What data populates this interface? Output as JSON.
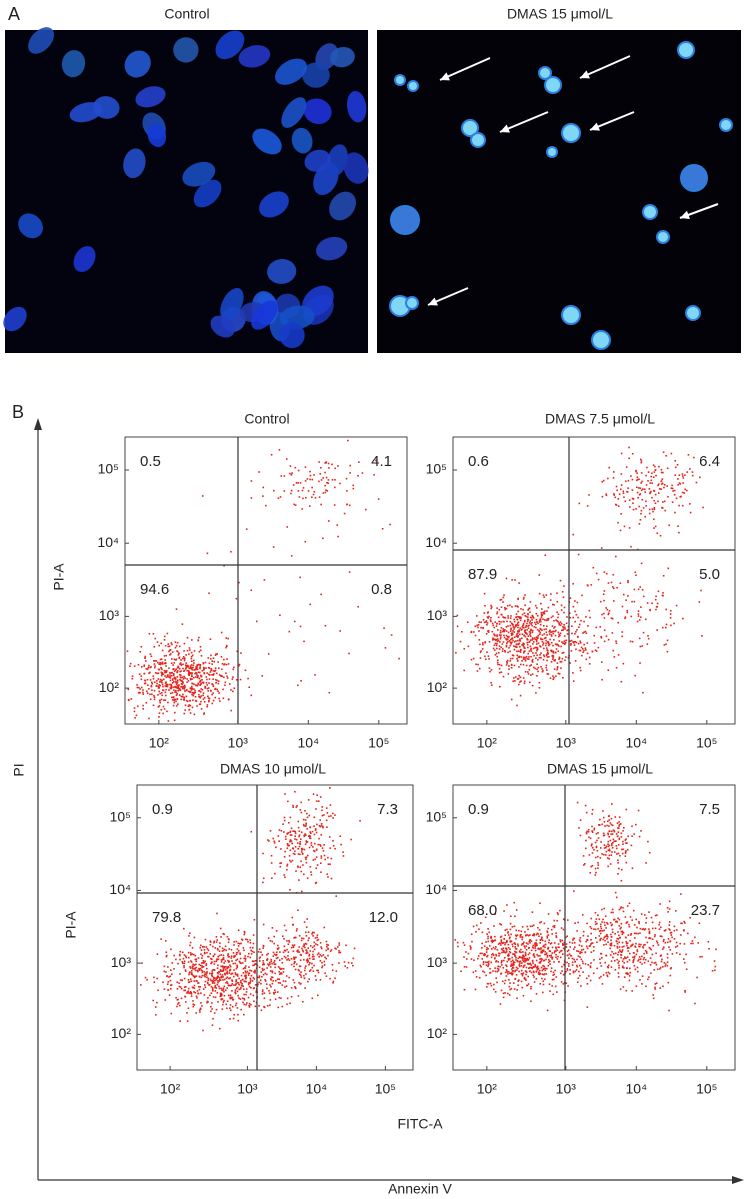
{
  "panel_a": {
    "label": "A",
    "images": [
      {
        "title": "Control"
      },
      {
        "title": "DMAS 15 μmol/L"
      }
    ]
  },
  "panel_b": {
    "label": "B",
    "y_axis_label": "PI",
    "x_axis_label": "Annexin V",
    "plot_y_label": "PI-A",
    "plot_x_label": "FITC-A",
    "ticks": [
      "10²",
      "10³",
      "10⁴",
      "10⁵"
    ],
    "plots": [
      {
        "title": "Control",
        "quadrants": {
          "upper_left": "0.5",
          "upper_right": "4.1",
          "lower_left": "94.6",
          "lower_right": "0.8"
        }
      },
      {
        "title": "DMAS 7.5 μmol/L",
        "quadrants": {
          "upper_left": "0.6",
          "upper_right": "6.4",
          "lower_left": "87.9",
          "lower_right": "5.0"
        }
      },
      {
        "title": "DMAS 10 μmol/L",
        "quadrants": {
          "upper_left": "0.9",
          "upper_right": "7.3",
          "lower_left": "79.8",
          "lower_right": "12.0"
        }
      },
      {
        "title": "DMAS 15 μmol/L",
        "quadrants": {
          "upper_left": "0.9",
          "upper_right": "7.5",
          "lower_left": "68.0",
          "lower_right": "23.7"
        }
      }
    ]
  }
}
